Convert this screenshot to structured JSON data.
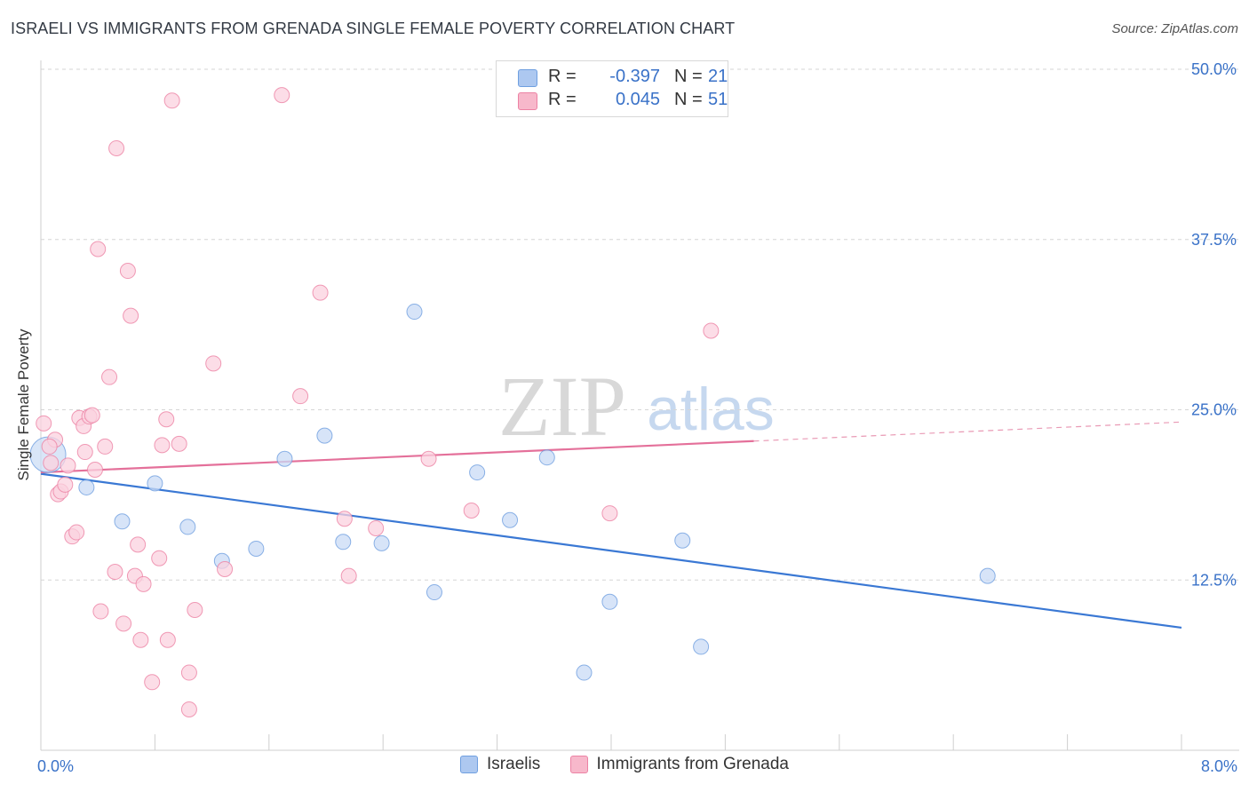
{
  "header": {
    "title": "ISRAELI VS IMMIGRANTS FROM GRENADA SINGLE FEMALE POVERTY CORRELATION CHART",
    "source": "Source: ZipAtlas.com"
  },
  "watermark": {
    "zip": "ZIP",
    "atlas": "atlas"
  },
  "stats": [
    {
      "r_label": "R =",
      "r_value": "-0.397",
      "n_label": "N =",
      "n_value": "21",
      "color": "#adc8f0"
    },
    {
      "r_label": "R =",
      "r_value": "0.045",
      "n_label": "N =",
      "n_value": "51",
      "color": "#f7b8cb"
    }
  ],
  "legend": [
    {
      "name": "Israelis",
      "color": "#adc8f0"
    },
    {
      "name": "Immigrants from Grenada",
      "color": "#f7b8cb"
    }
  ],
  "chart_data": {
    "type": "scatter",
    "title": "ISRAELI VS IMMIGRANTS FROM GRENADA SINGLE FEMALE POVERTY CORRELATION CHART",
    "xlabel": "",
    "ylabel": "Single Female Poverty",
    "xlim": [
      0,
      8
    ],
    "ylim": [
      0,
      50
    ],
    "x_tick_labels": [
      "0.0%",
      "8.0%"
    ],
    "y_ticks": [
      12.5,
      25.0,
      37.5,
      50.0
    ],
    "y_tick_labels": [
      "12.5%",
      "25.0%",
      "37.5%",
      "50.0%"
    ],
    "grid": "horizontal dashed",
    "legend_position": "bottom-center",
    "series": [
      {
        "name": "Israelis",
        "color": "#6f9fe0",
        "fill": "#c9dbf5",
        "points": [
          [
            0.05,
            21.7
          ],
          [
            0.32,
            19.3
          ],
          [
            0.57,
            16.8
          ],
          [
            0.8,
            19.6
          ],
          [
            1.03,
            16.4
          ],
          [
            1.27,
            13.9
          ],
          [
            1.51,
            14.8
          ],
          [
            1.71,
            21.4
          ],
          [
            1.99,
            23.1
          ],
          [
            2.12,
            15.3
          ],
          [
            2.39,
            15.2
          ],
          [
            2.62,
            32.2
          ],
          [
            2.76,
            11.6
          ],
          [
            3.06,
            20.4
          ],
          [
            3.29,
            16.9
          ],
          [
            3.55,
            21.5
          ],
          [
            3.81,
            5.7
          ],
          [
            3.99,
            10.9
          ],
          [
            4.5,
            15.4
          ],
          [
            4.63,
            7.6
          ],
          [
            6.64,
            12.8
          ]
        ],
        "trend": {
          "x0": 0.0,
          "y0": 20.3,
          "x1": 8.0,
          "y1": 9.0
        }
      },
      {
        "name": "Immigrants from Grenada",
        "color": "#ec82a4",
        "fill": "#fbd2df",
        "points": [
          [
            0.02,
            24.0
          ],
          [
            0.07,
            21.1
          ],
          [
            0.1,
            22.8
          ],
          [
            0.12,
            18.8
          ],
          [
            0.14,
            19.0
          ],
          [
            0.17,
            19.5
          ],
          [
            0.19,
            20.9
          ],
          [
            0.22,
            15.7
          ],
          [
            0.25,
            16.0
          ],
          [
            0.27,
            24.4
          ],
          [
            0.3,
            23.8
          ],
          [
            0.31,
            21.9
          ],
          [
            0.34,
            24.5
          ],
          [
            0.36,
            24.6
          ],
          [
            0.38,
            20.6
          ],
          [
            0.4,
            36.8
          ],
          [
            0.42,
            10.2
          ],
          [
            0.45,
            22.3
          ],
          [
            0.48,
            27.4
          ],
          [
            0.52,
            13.1
          ],
          [
            0.53,
            44.2
          ],
          [
            0.58,
            9.3
          ],
          [
            0.61,
            35.2
          ],
          [
            0.63,
            31.9
          ],
          [
            0.66,
            12.8
          ],
          [
            0.68,
            15.1
          ],
          [
            0.7,
            8.1
          ],
          [
            0.72,
            12.2
          ],
          [
            0.78,
            5.0
          ],
          [
            0.83,
            14.1
          ],
          [
            0.88,
            24.3
          ],
          [
            0.89,
            8.1
          ],
          [
            0.92,
            47.7
          ],
          [
            0.97,
            22.5
          ],
          [
            1.04,
            5.7
          ],
          [
            1.04,
            3.0
          ],
          [
            1.08,
            10.3
          ],
          [
            1.21,
            28.4
          ],
          [
            1.29,
            13.3
          ],
          [
            0.85,
            22.4
          ],
          [
            1.82,
            26.0
          ],
          [
            1.69,
            48.1
          ],
          [
            1.96,
            33.6
          ],
          [
            2.13,
            17.0
          ],
          [
            2.16,
            12.8
          ],
          [
            2.35,
            16.3
          ],
          [
            2.72,
            21.4
          ],
          [
            3.02,
            17.6
          ],
          [
            3.99,
            17.4
          ],
          [
            4.7,
            30.8
          ],
          [
            0.06,
            22.3
          ]
        ],
        "trend": {
          "x0": 0.0,
          "y0": 20.4,
          "x1": 5.0,
          "y1": 22.7,
          "dash_to_x": 8.0,
          "dash_to_y": 24.1
        }
      }
    ]
  }
}
